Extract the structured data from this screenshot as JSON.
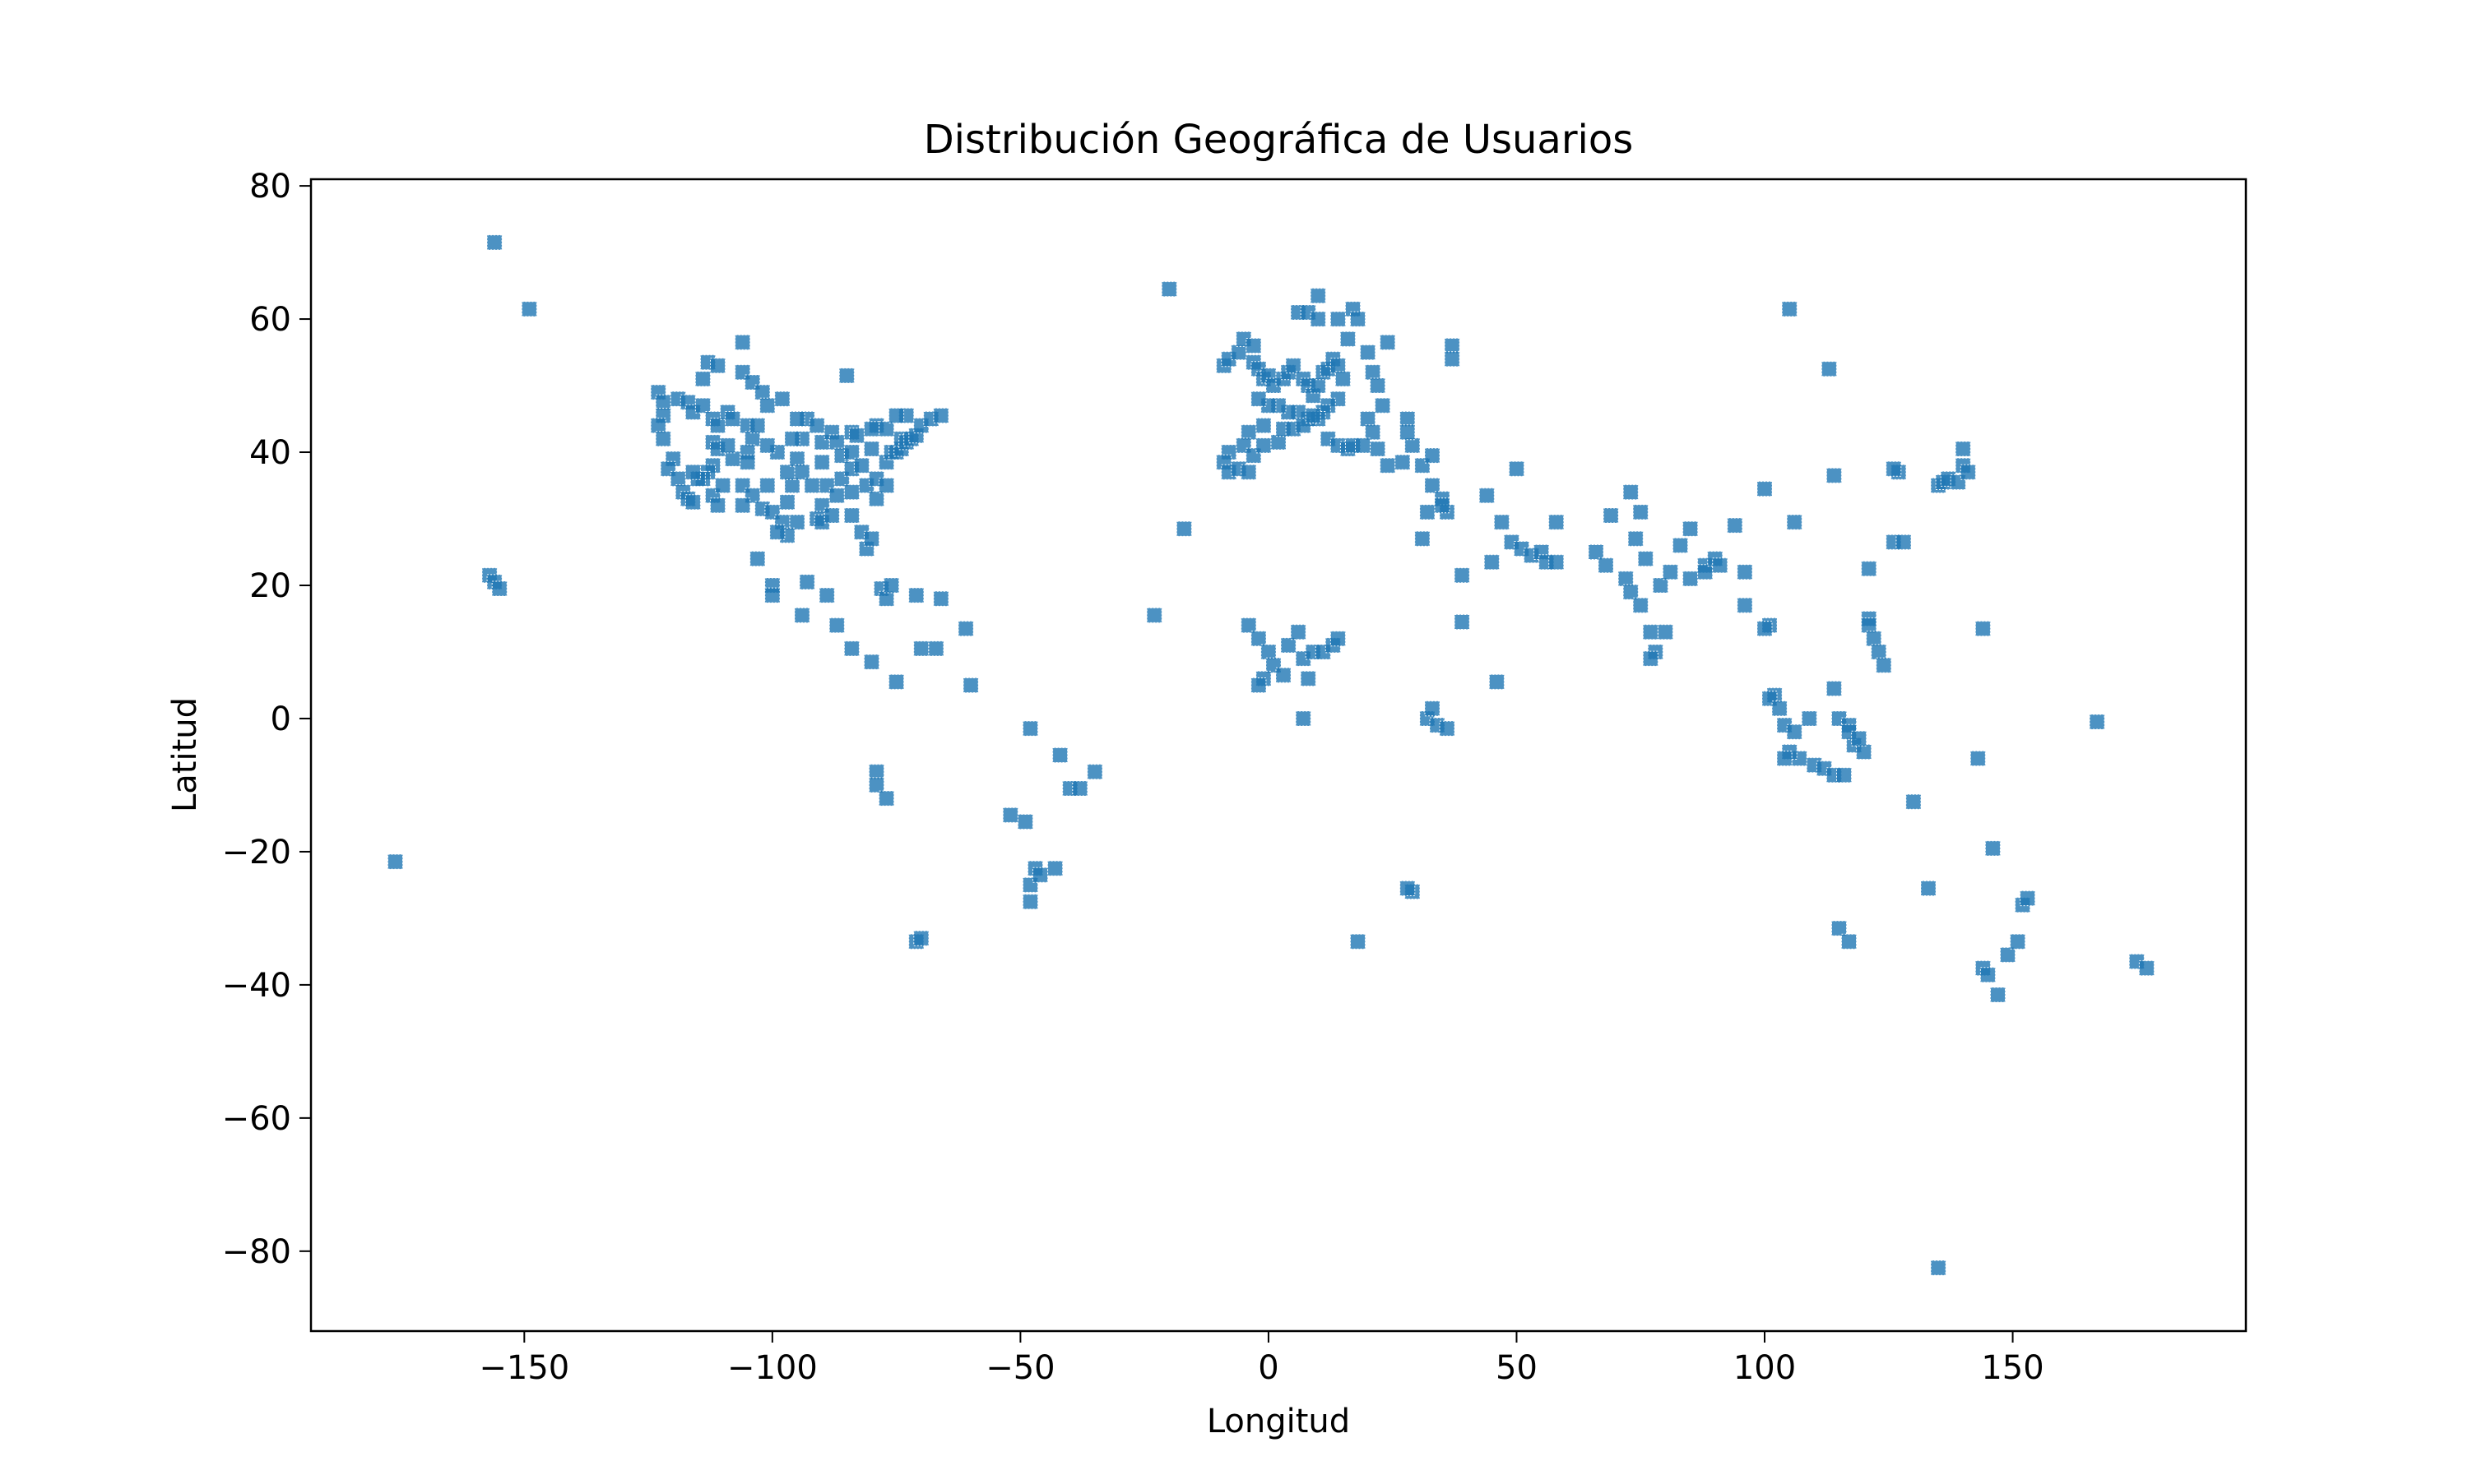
{
  "chart_data": {
    "type": "scatter",
    "title": "Distribución Geográfica de Usuarios",
    "xlabel": "Longitud",
    "ylabel": "Latitud",
    "xlim": [
      -193,
      197
    ],
    "ylim": [
      -92,
      81
    ],
    "xticks": [
      -150,
      -100,
      -50,
      0,
      50,
      100,
      150
    ],
    "yticks": [
      -80,
      -60,
      -40,
      -20,
      0,
      20,
      40,
      60,
      80
    ],
    "xtick_labels": [
      "−150",
      "−100",
      "−50",
      "0",
      "50",
      "100",
      "150"
    ],
    "ytick_labels": [
      "−80",
      "−60",
      "−40",
      "−20",
      "0",
      "20",
      "40",
      "60",
      "80"
    ],
    "grid": false,
    "marker": "square",
    "color": "#1f77b4",
    "points": [
      [
        -156,
        71.5
      ],
      [
        -149,
        61.5
      ],
      [
        -176,
        -21.5
      ],
      [
        -157,
        21.5
      ],
      [
        -156,
        20.5
      ],
      [
        -155,
        19.5
      ],
      [
        -123,
        49
      ],
      [
        -122,
        47.5
      ],
      [
        -122,
        45.5
      ],
      [
        -123,
        44
      ],
      [
        -122,
        42
      ],
      [
        -120,
        39
      ],
      [
        -121,
        37.5
      ],
      [
        -119,
        36
      ],
      [
        -118,
        34
      ],
      [
        -117,
        33
      ],
      [
        -116,
        32.5
      ],
      [
        -119,
        48
      ],
      [
        -117,
        47.5
      ],
      [
        -116,
        46
      ],
      [
        -114,
        47
      ],
      [
        -112,
        45
      ],
      [
        -111,
        44
      ],
      [
        -112,
        41.5
      ],
      [
        -111,
        40.5
      ],
      [
        -112,
        38
      ],
      [
        -113,
        37
      ],
      [
        -112,
        33.5
      ],
      [
        -111,
        32
      ],
      [
        -114,
        36
      ],
      [
        -115,
        36
      ],
      [
        -116,
        37
      ],
      [
        -113,
        53.5
      ],
      [
        -114,
        51
      ],
      [
        -111,
        53
      ],
      [
        -106,
        56.5
      ],
      [
        -106,
        52
      ],
      [
        -104,
        50.5
      ],
      [
        -102,
        49
      ],
      [
        -101,
        47
      ],
      [
        -98,
        48
      ],
      [
        -109,
        46
      ],
      [
        -108,
        45
      ],
      [
        -105,
        44
      ],
      [
        -104,
        42
      ],
      [
        -105,
        40
      ],
      [
        -105,
        38.5
      ],
      [
        -106,
        35
      ],
      [
        -104,
        33.5
      ],
      [
        -106,
        32
      ],
      [
        -102,
        31.5
      ],
      [
        -101,
        35
      ],
      [
        -100,
        31
      ],
      [
        -98,
        29.5
      ],
      [
        -97,
        32.5
      ],
      [
        -96,
        35
      ],
      [
        -95,
        29.5
      ],
      [
        -97,
        27.5
      ],
      [
        -99,
        28
      ],
      [
        -97,
        37
      ],
      [
        -95,
        39
      ],
      [
        -94,
        42
      ],
      [
        -93,
        45
      ],
      [
        -91,
        44
      ],
      [
        -90,
        41.5
      ],
      [
        -90,
        38.5
      ],
      [
        -89,
        35
      ],
      [
        -90,
        32
      ],
      [
        -91,
        30
      ],
      [
        -90,
        29.5
      ],
      [
        -88,
        43
      ],
      [
        -87,
        41.5
      ],
      [
        -86,
        39.5
      ],
      [
        -86,
        36
      ],
      [
        -87,
        33.5
      ],
      [
        -88,
        30.5
      ],
      [
        -84,
        43
      ],
      [
        -84,
        40
      ],
      [
        -84,
        37.5
      ],
      [
        -84,
        34
      ],
      [
        -84,
        30.5
      ],
      [
        -82,
        28
      ],
      [
        -81,
        25.5
      ],
      [
        -80,
        27
      ],
      [
        -82,
        38
      ],
      [
        -80,
        40.5
      ],
      [
        -81,
        35
      ],
      [
        -79,
        33
      ],
      [
        -79,
        36
      ],
      [
        -77,
        38.5
      ],
      [
        -77,
        35
      ],
      [
        -76,
        40
      ],
      [
        -75,
        40
      ],
      [
        -74,
        40.5
      ],
      [
        -74,
        42
      ],
      [
        -73,
        41.5
      ],
      [
        -72,
        42
      ],
      [
        -71,
        42.5
      ],
      [
        -70,
        44
      ],
      [
        -68,
        45
      ],
      [
        -66,
        45.5
      ],
      [
        -79,
        44
      ],
      [
        -77,
        43.5
      ],
      [
        -73,
        45.5
      ],
      [
        -75,
        45.5
      ],
      [
        -85,
        51.5
      ],
      [
        -83,
        42.5
      ],
      [
        -80,
        43.5
      ],
      [
        -95,
        45
      ],
      [
        -96,
        42
      ],
      [
        -94,
        37
      ],
      [
        -92,
        35
      ],
      [
        -99,
        40
      ],
      [
        -101,
        41
      ],
      [
        -103,
        44
      ],
      [
        -108,
        39
      ],
      [
        -109,
        41
      ],
      [
        -110,
        35
      ],
      [
        -103,
        24
      ],
      [
        -100,
        20
      ],
      [
        -100,
        18.5
      ],
      [
        -93,
        20.5
      ],
      [
        -94,
        15.5
      ],
      [
        -89,
        18.5
      ],
      [
        -87,
        14
      ],
      [
        -84,
        10.5
      ],
      [
        -80,
        8.5
      ],
      [
        -78,
        19.5
      ],
      [
        -77,
        18
      ],
      [
        -76,
        20
      ],
      [
        -75,
        5.5
      ],
      [
        -71,
        18.5
      ],
      [
        -70,
        10.5
      ],
      [
        -67,
        10.5
      ],
      [
        -66,
        18
      ],
      [
        -61,
        13.5
      ],
      [
        -60,
        5
      ],
      [
        -79,
        -8
      ],
      [
        -79,
        -10
      ],
      [
        -77,
        -12
      ],
      [
        -71,
        -33.5
      ],
      [
        -70,
        -33
      ],
      [
        -48,
        -1.5
      ],
      [
        -49,
        -15.5
      ],
      [
        -48,
        -25
      ],
      [
        -48,
        -27.5
      ],
      [
        -47,
        -22.5
      ],
      [
        -46,
        -23.5
      ],
      [
        -43,
        -22.5
      ],
      [
        -52,
        -14.5
      ],
      [
        -42,
        -5.5
      ],
      [
        -40,
        -10.5
      ],
      [
        -38,
        -10.5
      ],
      [
        -35,
        -8
      ],
      [
        -23,
        15.5
      ],
      [
        -20,
        64.5
      ],
      [
        -17,
        28.5
      ],
      [
        -9,
        53
      ],
      [
        -8,
        54
      ],
      [
        -6,
        55
      ],
      [
        -5,
        57
      ],
      [
        -3,
        56
      ],
      [
        -3,
        53.5
      ],
      [
        -2,
        52.5
      ],
      [
        -1,
        51
      ],
      [
        0,
        51.5
      ],
      [
        1,
        50
      ],
      [
        3,
        51
      ],
      [
        4,
        52
      ],
      [
        5,
        53
      ],
      [
        7,
        51
      ],
      [
        8,
        50
      ],
      [
        9,
        48.5
      ],
      [
        10,
        50
      ],
      [
        11,
        52
      ],
      [
        12,
        52.5
      ],
      [
        13,
        54
      ],
      [
        14,
        53
      ],
      [
        15,
        51
      ],
      [
        14,
        48
      ],
      [
        12,
        47
      ],
      [
        11,
        46
      ],
      [
        10,
        45
      ],
      [
        8,
        45
      ],
      [
        6,
        46
      ],
      [
        4,
        46
      ],
      [
        2,
        47
      ],
      [
        0,
        47
      ],
      [
        -2,
        48
      ],
      [
        -1,
        44
      ],
      [
        -4,
        43
      ],
      [
        -5,
        41
      ],
      [
        -8,
        40
      ],
      [
        -9,
        38.5
      ],
      [
        -8,
        37
      ],
      [
        -6,
        37.5
      ],
      [
        -4,
        37
      ],
      [
        -3,
        39.5
      ],
      [
        -1,
        41
      ],
      [
        2,
        41.5
      ],
      [
        3,
        43.5
      ],
      [
        5,
        43.5
      ],
      [
        7,
        44
      ],
      [
        9,
        45.5
      ],
      [
        12,
        42
      ],
      [
        14,
        41
      ],
      [
        16,
        40.5
      ],
      [
        17,
        41
      ],
      [
        6,
        61
      ],
      [
        8,
        61
      ],
      [
        10,
        60
      ],
      [
        10,
        63.5
      ],
      [
        14,
        60
      ],
      [
        16,
        57
      ],
      [
        17,
        61.5
      ],
      [
        18,
        60
      ],
      [
        24,
        56.5
      ],
      [
        20,
        55
      ],
      [
        21,
        52
      ],
      [
        22,
        50
      ],
      [
        23,
        47
      ],
      [
        20,
        45
      ],
      [
        21,
        43
      ],
      [
        19,
        41
      ],
      [
        22,
        40.5
      ],
      [
        24,
        38
      ],
      [
        27,
        38.5
      ],
      [
        29,
        41
      ],
      [
        28,
        45
      ],
      [
        28,
        43
      ],
      [
        31,
        38
      ],
      [
        33,
        39.5
      ],
      [
        33,
        35
      ],
      [
        35,
        33
      ],
      [
        36,
        31
      ],
      [
        35,
        32
      ],
      [
        39,
        21.5
      ],
      [
        39,
        14.5
      ],
      [
        37,
        56
      ],
      [
        37,
        54
      ],
      [
        31,
        27
      ],
      [
        32,
        31
      ],
      [
        29,
        -26
      ],
      [
        28,
        -25.5
      ],
      [
        18,
        -33.5
      ],
      [
        32,
        0
      ],
      [
        33,
        1.5
      ],
      [
        34,
        -1
      ],
      [
        36,
        -1.5
      ],
      [
        -4,
        14
      ],
      [
        -2,
        12
      ],
      [
        0,
        10
      ],
      [
        1,
        8
      ],
      [
        3,
        6.5
      ],
      [
        4,
        11
      ],
      [
        6,
        13
      ],
      [
        7,
        9
      ],
      [
        8,
        6
      ],
      [
        9,
        10
      ],
      [
        11,
        10
      ],
      [
        13,
        11
      ],
      [
        14,
        12
      ],
      [
        7,
        0
      ],
      [
        -1,
        6
      ],
      [
        -2,
        5
      ],
      [
        44,
        33.5
      ],
      [
        45,
        23.5
      ],
      [
        46,
        5.5
      ],
      [
        47,
        29.5
      ],
      [
        49,
        26.5
      ],
      [
        50,
        37.5
      ],
      [
        51,
        25.5
      ],
      [
        53,
        24.5
      ],
      [
        55,
        25
      ],
      [
        56,
        23.5
      ],
      [
        58,
        29.5
      ],
      [
        58,
        23.5
      ],
      [
        66,
        25
      ],
      [
        68,
        23
      ],
      [
        69,
        30.5
      ],
      [
        73,
        34
      ],
      [
        75,
        31
      ],
      [
        74,
        27
      ],
      [
        76,
        24
      ],
      [
        72,
        21
      ],
      [
        73,
        19
      ],
      [
        75,
        17
      ],
      [
        77,
        13
      ],
      [
        78,
        10
      ],
      [
        77,
        9
      ],
      [
        80,
        13
      ],
      [
        79,
        20
      ],
      [
        81,
        22
      ],
      [
        85,
        21
      ],
      [
        83,
        26
      ],
      [
        85,
        28.5
      ],
      [
        88,
        23
      ],
      [
        88,
        22
      ],
      [
        90,
        24
      ],
      [
        91,
        23
      ],
      [
        94,
        29
      ],
      [
        96,
        22
      ],
      [
        96,
        17
      ],
      [
        100,
        34.5
      ],
      [
        101,
        14
      ],
      [
        100,
        13.5
      ],
      [
        102,
        3.5
      ],
      [
        101,
        3
      ],
      [
        103,
        1.5
      ],
      [
        104,
        -1
      ],
      [
        107,
        -6
      ],
      [
        110,
        -7
      ],
      [
        112,
        -7.5
      ],
      [
        114,
        -8.5
      ],
      [
        116,
        -8.5
      ],
      [
        105,
        -5
      ],
      [
        106,
        -2
      ],
      [
        104,
        -6
      ],
      [
        109,
        0
      ],
      [
        115,
        0
      ],
      [
        117,
        -1
      ],
      [
        118,
        -4
      ],
      [
        120,
        -5
      ],
      [
        117,
        -2
      ],
      [
        105,
        61.5
      ],
      [
        106,
        29.5
      ],
      [
        113,
        52.5
      ],
      [
        114,
        36.5
      ],
      [
        114,
        4.5
      ],
      [
        119,
        -3
      ],
      [
        121,
        22.5
      ],
      [
        121,
        15
      ],
      [
        121,
        14
      ],
      [
        122,
        12
      ],
      [
        123,
        10
      ],
      [
        124,
        8
      ],
      [
        126,
        26.5
      ],
      [
        127,
        37
      ],
      [
        126,
        37.5
      ],
      [
        128,
        26.5
      ],
      [
        130,
        -12.5
      ],
      [
        133,
        -25.5
      ],
      [
        135,
        35
      ],
      [
        136,
        35.5
      ],
      [
        137,
        36
      ],
      [
        139,
        35.5
      ],
      [
        140,
        38
      ],
      [
        140,
        40.5
      ],
      [
        141,
        37
      ],
      [
        143,
        -6
      ],
      [
        144,
        13.5
      ],
      [
        144,
        -37.5
      ],
      [
        145,
        -38.5
      ],
      [
        146,
        -19.5
      ],
      [
        147,
        -41.5
      ],
      [
        149,
        -35.5
      ],
      [
        151,
        -33.5
      ],
      [
        152,
        -28
      ],
      [
        153,
        -27
      ],
      [
        115,
        -31.5
      ],
      [
        117,
        -33.5
      ],
      [
        135,
        -82.5
      ],
      [
        167,
        -0.5
      ],
      [
        175,
        -36.5
      ],
      [
        177,
        -37.5
      ]
    ]
  }
}
